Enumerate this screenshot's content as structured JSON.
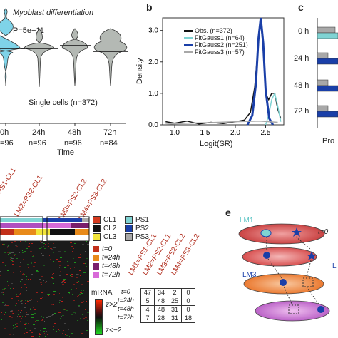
{
  "panel_a": {
    "title": "Myoblast differentiation",
    "pvalue": "P=5e−11",
    "single_cells": "Single cells (n=372)",
    "xlabel": "Time",
    "timepoints": [
      {
        "label": "0h",
        "n": "=96"
      },
      {
        "label": "24h",
        "n": "n=96"
      },
      {
        "label": "48h",
        "n": "n=96"
      },
      {
        "label": "72h",
        "n": "n=84"
      }
    ],
    "colors": {
      "t0": "#7fd3e8",
      "violin": "#b4b9b4"
    }
  },
  "panel_b": {
    "letter": "b",
    "ylabel": "Density",
    "xlabel": "Logit(SR)",
    "legend": [
      {
        "label": "Obs. (n=372)",
        "color": "#111111"
      },
      {
        "label": "FitGauss1 (n=64)",
        "color": "#7fd3d3"
      },
      {
        "label": "FitGauss2 (n=251)",
        "color": "#1a3fa8"
      },
      {
        "label": "FitGauss3 (n=57)",
        "color": "#a8a8a8"
      }
    ]
  },
  "chart_data": {
    "type": "line",
    "xlabel": "Logit(SR)",
    "ylabel": "Density",
    "xlim": [
      0.8,
      2.8
    ],
    "ylim": [
      0,
      3.4
    ],
    "xticks": [
      "1.0",
      "1.5",
      "2.0",
      "2.5"
    ],
    "yticks": [
      "0.0",
      "1.0",
      "2.0",
      "3.0"
    ],
    "series": [
      {
        "name": "Obs. (n=372)",
        "x": [
          0.85,
          1.0,
          1.2,
          1.4,
          1.6,
          1.8,
          2.0,
          2.15,
          2.25,
          2.32,
          2.38,
          2.42,
          2.46,
          2.5,
          2.55,
          2.6,
          2.65,
          2.7,
          2.75
        ],
        "y": [
          0.1,
          0.05,
          0.12,
          0.03,
          0.08,
          0.04,
          0.1,
          0.15,
          0.4,
          1.2,
          2.6,
          3.3,
          2.4,
          1.0,
          0.8,
          1.0,
          1.0,
          0.5,
          0.2
        ]
      },
      {
        "name": "FitGauss1 (n=64)",
        "x": [
          2.5,
          2.55,
          2.6,
          2.65,
          2.7,
          2.75
        ],
        "y": [
          0.0,
          0.3,
          0.8,
          1.0,
          0.6,
          0.1
        ]
      },
      {
        "name": "FitGauss2 (n=251)",
        "x": [
          2.2,
          2.28,
          2.34,
          2.38,
          2.42,
          2.46,
          2.5,
          2.56,
          2.62
        ],
        "y": [
          0.0,
          0.3,
          1.3,
          2.7,
          3.4,
          2.6,
          1.1,
          0.2,
          0.0
        ]
      },
      {
        "name": "FitGauss3 (n=57)",
        "x": [
          0.85,
          1.2,
          1.6,
          2.0,
          2.4,
          2.7
        ],
        "y": [
          0.02,
          0.05,
          0.07,
          0.1,
          0.12,
          0.08
        ]
      }
    ]
  },
  "panel_c": {
    "letter": "c",
    "labels": [
      "0 h",
      "24 h",
      "48 h",
      "72 h"
    ],
    "xlabel": "Pro",
    "colors": {
      "gray": "#a8a8a8",
      "cyan": "#7fd3d3",
      "blue": "#1a3fa8"
    }
  },
  "panel_d": {
    "col_labels": [
      "PS1-CL1",
      "LM2=PS2-CL1",
      "LM3=PS2-CL2",
      "LM4=PS3-CL2"
    ],
    "legend": [
      {
        "code": "CL1",
        "color": "#d43a1f",
        "code2": "PS1",
        "color2": "#7fd3d3"
      },
      {
        "code": "CL2",
        "color": "#111111",
        "code2": "PS2",
        "color2": "#1a3fa8"
      },
      {
        "code": "CL3",
        "color": "#f2e53a",
        "code2": "PS3",
        "color2": "#a8a8a8"
      }
    ],
    "times": [
      {
        "label": "t=0",
        "color": "#c2301a"
      },
      {
        "label": "t=24h",
        "color": "#e88a1a"
      },
      {
        "label": "t=48h",
        "color": "#7a1f6b"
      },
      {
        "label": "t=72h",
        "color": "#d86ad8"
      }
    ],
    "mrna_label": "mRNA",
    "mrna_high": "z>2",
    "mrna_low": "z<−2",
    "matrix_cols": [
      "LM1=PS1-CL1",
      "LM2=PS2-CL1",
      "LM3=PS2-CL2",
      "LM4=PS3-CL2"
    ],
    "matrix_rows": [
      {
        "label": "t=0",
        "values": [
          "47",
          "34",
          "2",
          "0"
        ]
      },
      {
        "label": "t=24h",
        "values": [
          "5",
          "48",
          "25",
          "0"
        ]
      },
      {
        "label": "t=48h",
        "values": [
          "4",
          "48",
          "31",
          "0"
        ]
      },
      {
        "label": "t=72h",
        "values": [
          "7",
          "28",
          "31",
          "18"
        ]
      }
    ]
  },
  "panel_e": {
    "letter": "e",
    "lm1": "LM1",
    "lm3": "LM3",
    "lm_cut": "L",
    "t0": "t=0"
  }
}
